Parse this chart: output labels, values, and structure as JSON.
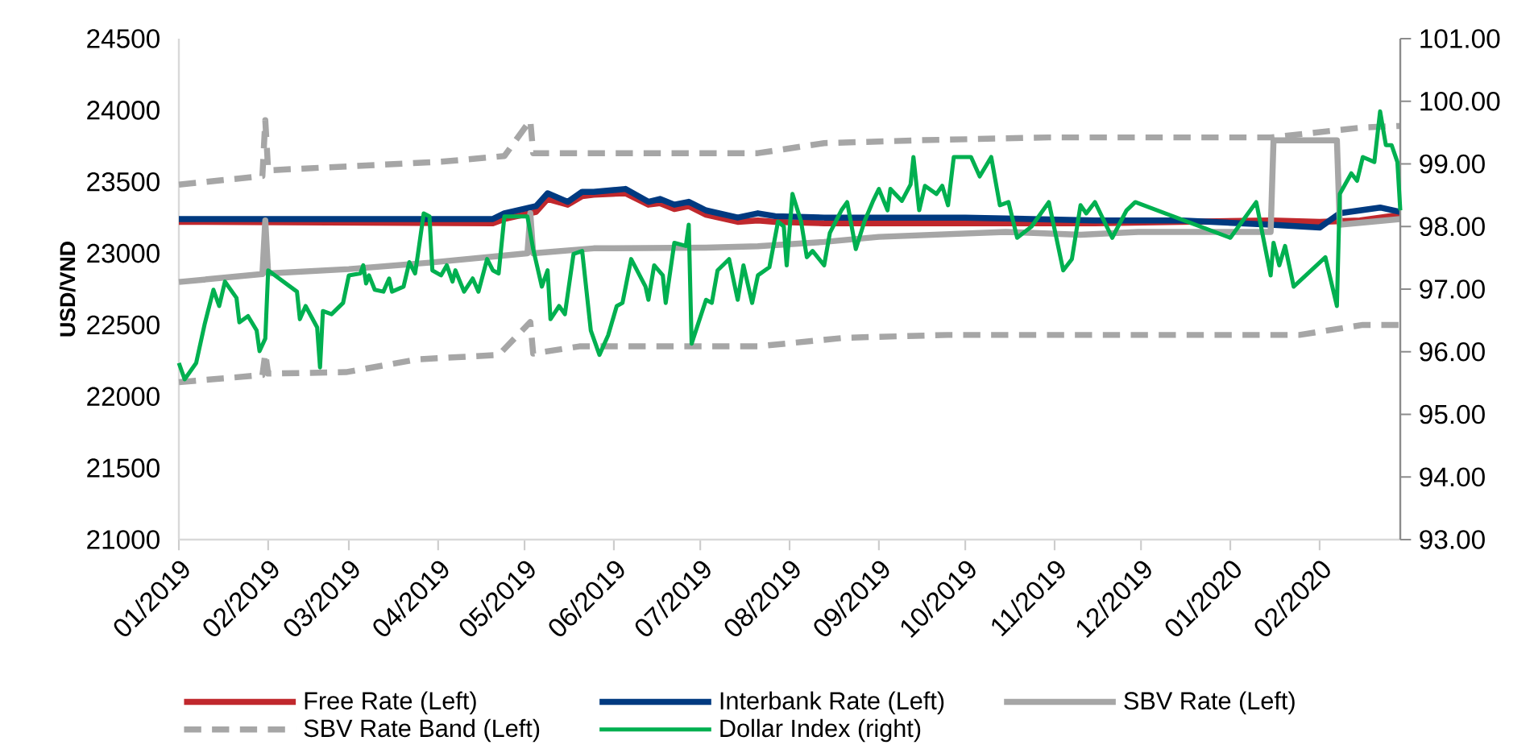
{
  "chart_data": {
    "type": "line",
    "ylabel": "USD/VND",
    "xlim": [
      "2019-01-01",
      "2020-02-29"
    ],
    "xticks": [
      {
        "value": "2019-01-01",
        "label": "01/2019"
      },
      {
        "value": "2019-02-01",
        "label": "02/2019"
      },
      {
        "value": "2019-03-01",
        "label": "03/2019"
      },
      {
        "value": "2019-04-01",
        "label": "04/2019"
      },
      {
        "value": "2019-05-01",
        "label": "05/2019"
      },
      {
        "value": "2019-06-01",
        "label": "06/2019"
      },
      {
        "value": "2019-07-01",
        "label": "07/2019"
      },
      {
        "value": "2019-08-01",
        "label": "08/2019"
      },
      {
        "value": "2019-09-01",
        "label": "09/2019"
      },
      {
        "value": "2019-10-01",
        "label": "10/2019"
      },
      {
        "value": "2019-11-01",
        "label": "11/2019"
      },
      {
        "value": "2019-12-01",
        "label": "12/2019"
      },
      {
        "value": "2020-01-01",
        "label": "01/2020"
      },
      {
        "value": "2020-02-01",
        "label": "02/2020"
      }
    ],
    "ylim": [
      21000,
      24500
    ],
    "yticks": [
      21000,
      21500,
      22000,
      22500,
      23000,
      23500,
      24000,
      24500
    ],
    "y2lim": [
      93,
      101
    ],
    "y2ticks": [
      {
        "value": 93,
        "label": "93.00"
      },
      {
        "value": 94,
        "label": "94.00"
      },
      {
        "value": 95,
        "label": "95.00"
      },
      {
        "value": 96,
        "label": "96.00"
      },
      {
        "value": 97,
        "label": "97.00"
      },
      {
        "value": 98,
        "label": "98.00"
      },
      {
        "value": 99,
        "label": "99.00"
      },
      {
        "value": 100,
        "label": "100.00"
      },
      {
        "value": 101,
        "label": "101.00"
      }
    ],
    "legend": "bottom",
    "series": [
      {
        "name": "Free Rate (Left)",
        "color": "#c0282d",
        "x": [
          "2019-01-01",
          "2019-04-20",
          "2019-04-24",
          "2019-05-05",
          "2019-05-09",
          "2019-05-16",
          "2019-05-21",
          "2019-05-25",
          "2019-06-05",
          "2019-06-13",
          "2019-06-17",
          "2019-06-22",
          "2019-06-27",
          "2019-07-03",
          "2019-07-14",
          "2019-07-21",
          "2019-07-27",
          "2019-08-13",
          "2019-10-01",
          "2019-11-15",
          "2019-12-15",
          "2020-01-15",
          "2020-02-01",
          "2020-02-15",
          "2020-02-29"
        ],
        "values": [
          23220,
          23210,
          23240,
          23290,
          23380,
          23340,
          23400,
          23410,
          23420,
          23340,
          23350,
          23310,
          23330,
          23270,
          23220,
          23230,
          23220,
          23210,
          23210,
          23210,
          23220,
          23230,
          23220,
          23230,
          23270
        ]
      },
      {
        "name": "Interbank Rate (Left)",
        "color": "#003a80",
        "x": [
          "2019-01-01",
          "2019-04-20",
          "2019-04-24",
          "2019-05-05",
          "2019-05-09",
          "2019-05-16",
          "2019-05-21",
          "2019-05-25",
          "2019-06-05",
          "2019-06-13",
          "2019-06-17",
          "2019-06-22",
          "2019-06-27",
          "2019-07-03",
          "2019-07-14",
          "2019-07-21",
          "2019-07-27",
          "2019-08-13",
          "2019-10-01",
          "2019-11-15",
          "2019-12-15",
          "2020-01-15",
          "2020-02-01",
          "2020-02-08",
          "2020-02-22",
          "2020-02-29"
        ],
        "values": [
          23240,
          23240,
          23280,
          23330,
          23420,
          23360,
          23430,
          23430,
          23450,
          23360,
          23380,
          23340,
          23360,
          23300,
          23250,
          23280,
          23260,
          23250,
          23250,
          23230,
          23230,
          23200,
          23180,
          23280,
          23320,
          23290
        ]
      },
      {
        "name": "SBV Rate (Left)",
        "color": "#a6a6a6",
        "x": [
          "2019-01-01",
          "2019-01-30",
          "2019-01-31",
          "2019-02-01",
          "2019-03-01",
          "2019-03-29",
          "2019-05-02",
          "2019-05-03",
          "2019-05-04",
          "2019-05-25",
          "2019-07-03",
          "2019-07-21",
          "2019-08-13",
          "2019-09-01",
          "2019-10-15",
          "2019-11-10",
          "2019-11-30",
          "2020-01-15",
          "2020-01-16",
          "2020-02-07",
          "2020-02-08",
          "2020-02-29"
        ],
        "values": [
          22800,
          22855,
          23230,
          22860,
          22890,
          22935,
          23000,
          23280,
          23000,
          23035,
          23040,
          23050,
          23080,
          23115,
          23150,
          23130,
          23150,
          23150,
          23790,
          23790,
          23200,
          23240
        ]
      },
      {
        "name": "SBV Rate Band (Left)",
        "color": "#a6a6a6",
        "line_style": "dashed",
        "x": [
          "2019-01-01",
          "2019-01-30",
          "2019-01-31",
          "2019-02-01",
          "2019-04-02",
          "2019-04-24",
          "2019-05-03",
          "2019-05-04",
          "2019-07-21",
          "2019-08-13",
          "2019-09-15",
          "2019-10-30",
          "2020-01-15",
          "2020-02-16",
          "2020-02-29"
        ],
        "values": [
          23480,
          23540,
          23930,
          23580,
          23640,
          23680,
          23930,
          23700,
          23700,
          23770,
          23790,
          23810,
          23810,
          23880,
          23890
        ]
      },
      {
        "color": "#a6a6a6",
        "line_style": "dashed",
        "x": [
          "2019-01-01",
          "2019-01-30",
          "2019-01-31",
          "2019-02-01",
          "2019-02-28",
          "2019-03-25",
          "2019-04-22",
          "2019-05-03",
          "2019-05-04",
          "2019-05-20",
          "2019-07-21",
          "2019-08-20",
          "2019-09-25",
          "2020-01-25",
          "2020-02-16",
          "2020-02-29"
        ],
        "values": [
          22100,
          22150,
          22300,
          22160,
          22170,
          22260,
          22290,
          22520,
          22300,
          22350,
          22350,
          22410,
          22430,
          22430,
          22500,
          22500
        ]
      },
      {
        "name": "Dollar Index (right)",
        "color": "#00b050",
        "axis": "y2",
        "x": [
          "2019-01-01",
          "2019-01-03",
          "2019-01-07",
          "2019-01-10",
          "2019-01-13",
          "2019-01-15",
          "2019-01-17",
          "2019-01-21",
          "2019-01-22",
          "2019-01-25",
          "2019-01-28",
          "2019-01-29",
          "2019-01-31",
          "2019-02-01",
          "2019-02-11",
          "2019-02-12",
          "2019-02-14",
          "2019-02-18",
          "2019-02-19",
          "2019-02-20",
          "2019-02-23",
          "2019-02-27",
          "2019-03-01",
          "2019-03-05",
          "2019-03-06",
          "2019-03-07",
          "2019-03-08",
          "2019-03-10",
          "2019-03-13",
          "2019-03-15",
          "2019-03-16",
          "2019-03-20",
          "2019-03-22",
          "2019-03-24",
          "2019-03-25",
          "2019-03-27",
          "2019-03-29",
          "2019-03-30",
          "2019-04-02",
          "2019-04-04",
          "2019-04-06",
          "2019-04-07",
          "2019-04-10",
          "2019-04-13",
          "2019-04-15",
          "2019-04-18",
          "2019-04-20",
          "2019-04-22",
          "2019-04-24",
          "2019-05-02",
          "2019-05-04",
          "2019-05-07",
          "2019-05-09",
          "2019-05-10",
          "2019-05-13",
          "2019-05-15",
          "2019-05-18",
          "2019-05-21",
          "2019-05-24",
          "2019-05-27",
          "2019-05-30",
          "2019-06-02",
          "2019-06-04",
          "2019-06-07",
          "2019-06-12",
          "2019-06-13",
          "2019-06-15",
          "2019-06-18",
          "2019-06-19",
          "2019-06-22",
          "2019-06-26",
          "2019-06-27",
          "2019-06-28",
          "2019-07-03",
          "2019-07-05",
          "2019-07-07",
          "2019-07-11",
          "2019-07-14",
          "2019-07-16",
          "2019-07-19",
          "2019-07-21",
          "2019-07-25",
          "2019-07-28",
          "2019-07-30",
          "2019-07-31",
          "2019-08-02",
          "2019-08-05",
          "2019-08-07",
          "2019-08-09",
          "2019-08-13",
          "2019-08-15",
          "2019-08-19",
          "2019-08-21",
          "2019-08-24",
          "2019-08-27",
          "2019-08-30",
          "2019-09-01",
          "2019-09-04",
          "2019-09-05",
          "2019-09-09",
          "2019-09-12",
          "2019-09-13",
          "2019-09-15",
          "2019-09-17",
          "2019-09-21",
          "2019-09-23",
          "2019-09-25",
          "2019-09-27",
          "2019-10-03",
          "2019-10-06",
          "2019-10-10",
          "2019-10-13",
          "2019-10-16",
          "2019-10-19",
          "2019-10-24",
          "2019-10-30",
          "2019-11-04",
          "2019-11-07",
          "2019-11-10",
          "2019-11-12",
          "2019-11-15",
          "2019-11-21",
          "2019-11-26",
          "2019-11-29",
          "2020-01-01",
          "2020-01-10",
          "2020-01-15",
          "2020-01-16",
          "2020-01-18",
          "2020-01-20",
          "2020-01-23",
          "2020-02-03",
          "2020-02-07",
          "2020-02-08",
          "2020-02-12",
          "2020-02-14",
          "2020-02-16",
          "2020-02-20",
          "2020-02-22",
          "2020-02-24",
          "2020-02-26",
          "2020-02-28",
          "2020-02-29"
        ],
        "values": [
          95.82,
          95.56,
          95.82,
          96.45,
          96.99,
          96.73,
          97.12,
          96.86,
          96.47,
          96.57,
          96.34,
          96.01,
          96.21,
          97.3,
          96.96,
          96.52,
          96.73,
          96.39,
          95.75,
          96.65,
          96.6,
          96.78,
          97.22,
          97.25,
          97.38,
          97.09,
          97.22,
          96.99,
          96.96,
          97.17,
          96.96,
          97.04,
          97.43,
          97.25,
          97.56,
          98.21,
          98.16,
          97.3,
          97.22,
          97.38,
          97.12,
          97.3,
          96.96,
          97.17,
          96.96,
          97.48,
          97.3,
          97.25,
          98.16,
          98.16,
          97.64,
          97.04,
          97.3,
          96.52,
          96.73,
          96.6,
          97.56,
          97.61,
          96.34,
          95.95,
          96.26,
          96.73,
          96.78,
          97.48,
          97.04,
          96.83,
          97.38,
          97.22,
          96.78,
          97.74,
          97.69,
          98.03,
          96.13,
          96.83,
          96.78,
          97.3,
          97.48,
          96.83,
          97.38,
          96.78,
          97.22,
          97.35,
          98.08,
          98.0,
          97.38,
          98.52,
          98.08,
          97.51,
          97.61,
          97.38,
          97.9,
          98.26,
          98.39,
          97.64,
          98.08,
          98.41,
          98.6,
          98.26,
          98.6,
          98.41,
          98.67,
          99.11,
          98.26,
          98.65,
          98.52,
          98.65,
          98.34,
          99.11,
          99.11,
          98.8,
          99.11,
          98.34,
          98.39,
          97.82,
          98.0,
          98.39,
          97.3,
          97.48,
          98.34,
          98.21,
          98.39,
          97.82,
          98.26,
          98.39,
          97.82,
          98.39,
          97.22,
          97.74,
          97.38,
          97.69,
          97.04,
          97.51,
          96.73,
          98.52,
          98.85,
          98.73,
          99.11,
          99.03,
          99.84,
          99.3,
          99.3,
          99.03,
          98.26
        ]
      }
    ]
  }
}
